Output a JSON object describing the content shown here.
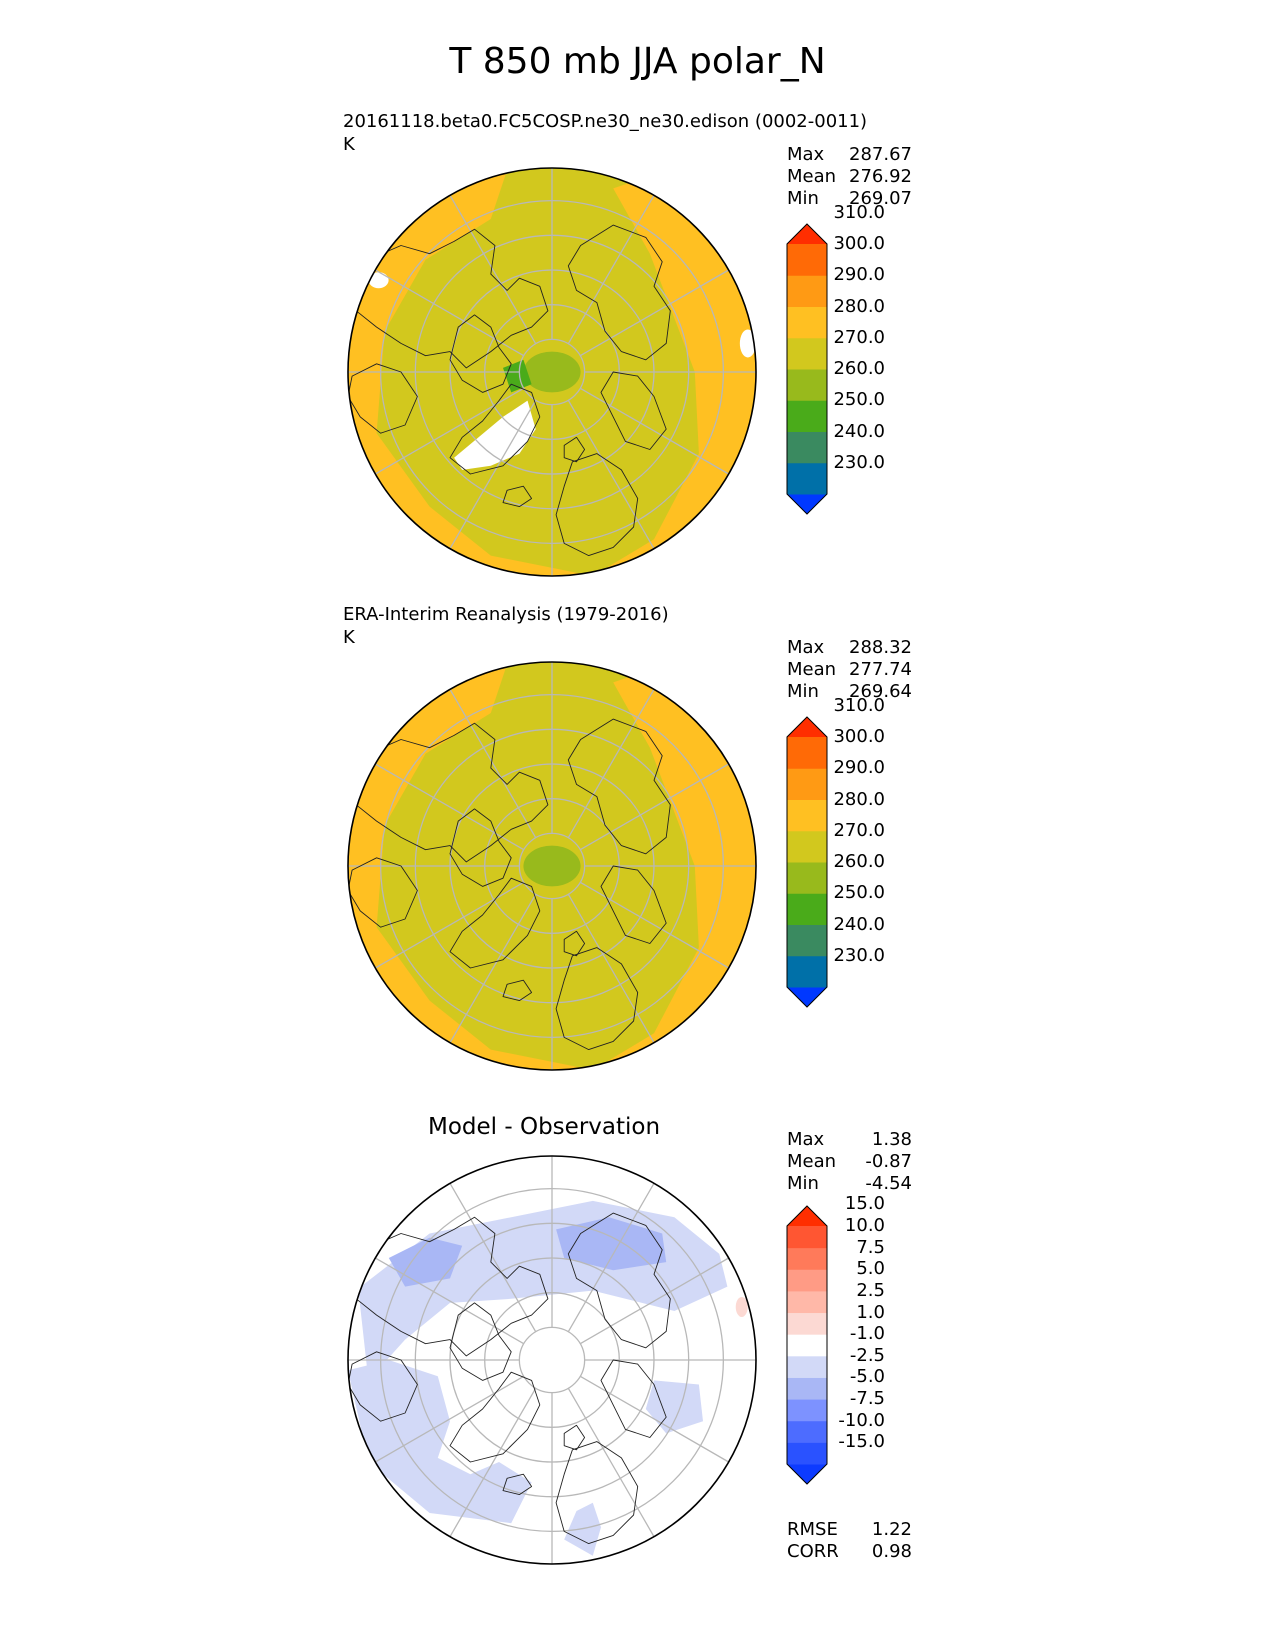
{
  "title": "T 850 mb JJA polar_N",
  "colors": {
    "frame": "#000000",
    "grid": "#b8b8b8",
    "coast": "#222222",
    "missing": "#ffffff"
  },
  "panels": [
    {
      "id": "test",
      "title": "20161118.beta0.FC5COSP.ne30_ne30.edison (0002-0011)",
      "units": "K",
      "stats": [
        {
          "label": "Max",
          "value": "287.67"
        },
        {
          "label": "Mean",
          "value": "276.92"
        },
        {
          "label": "Min",
          "value": "269.07"
        }
      ],
      "colorbar": {
        "colors": [
          "#0038ff",
          "#0070a8",
          "#3a8a60",
          "#4aab1a",
          "#98ba1c",
          "#d2c81e",
          "#ffc022",
          "#ff9a14",
          "#ff6a06",
          "#ff2e00"
        ],
        "labels": [
          "230.0",
          "240.0",
          "250.0",
          "260.0",
          "270.0",
          "280.0",
          "290.0",
          "300.0",
          "310.0"
        ]
      },
      "fields": {
        "background": "#d2c81e",
        "outer_band": "#ffc022",
        "pole": "#98ba1c",
        "pole_edge": "#4aab1a"
      }
    },
    {
      "id": "reference",
      "title": "ERA-Interim Reanalysis (1979-2016)",
      "units": "K",
      "stats": [
        {
          "label": "Max",
          "value": "288.32"
        },
        {
          "label": "Mean",
          "value": "277.74"
        },
        {
          "label": "Min",
          "value": "269.64"
        }
      ],
      "colorbar": {
        "colors": [
          "#0038ff",
          "#0070a8",
          "#3a8a60",
          "#4aab1a",
          "#98ba1c",
          "#d2c81e",
          "#ffc022",
          "#ff9a14",
          "#ff6a06",
          "#ff2e00"
        ],
        "labels": [
          "230.0",
          "240.0",
          "250.0",
          "260.0",
          "270.0",
          "280.0",
          "290.0",
          "300.0",
          "310.0"
        ]
      },
      "fields": {
        "background": "#d2c81e",
        "outer_band": "#ffc022",
        "pole": "#98ba1c",
        "pole_edge": "#98ba1c"
      }
    },
    {
      "id": "diff",
      "title": "Model - Observation",
      "units": "",
      "stats": [
        {
          "label": "Max",
          "value": "1.38"
        },
        {
          "label": "Mean",
          "value": "-0.87"
        },
        {
          "label": "Min",
          "value": "-4.54"
        }
      ],
      "extra_stats": [
        {
          "label": "RMSE",
          "value": "1.22"
        },
        {
          "label": "CORR",
          "value": "0.98"
        }
      ],
      "colorbar": {
        "colors": [
          "#0d3bff",
          "#2a52ff",
          "#4d6cff",
          "#7d92ff",
          "#a9b7f5",
          "#d2d9f7",
          "#ffffff",
          "#fcd9d3",
          "#ffb8a8",
          "#ff9b85",
          "#ff7a5a",
          "#ff5632",
          "#ff2e00"
        ],
        "labels": [
          "-15.0",
          "-10.0",
          "-7.5",
          "-5.0",
          "-2.5",
          "-1.0",
          "1.0",
          "2.5",
          "5.0",
          "7.5",
          "10.0",
          "15.0"
        ]
      },
      "fields": {
        "background": "#ffffff",
        "light_blue": "#d2d9f7",
        "mid_blue": "#a9b7f5",
        "light_red": "#fcd9d3"
      }
    }
  ]
}
